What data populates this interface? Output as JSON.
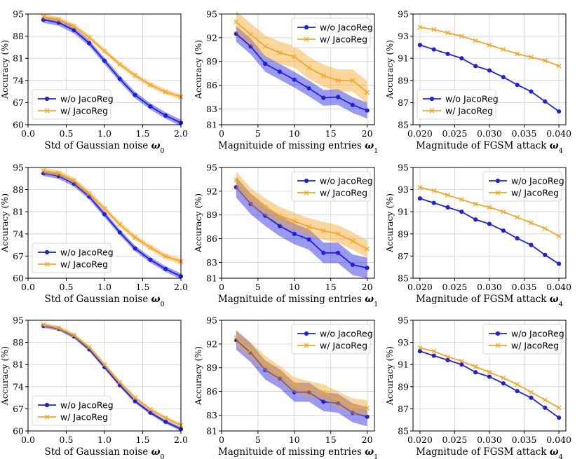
{
  "figure_colors": {
    "baseline": "#1f1fe0",
    "reg": "#f5a623",
    "grid": "#d0d0d0"
  },
  "chart_data": [
    {
      "type": "line",
      "row": 0,
      "col": 0,
      "xlabel": "Std of Gaussian noise",
      "xsym": "ω",
      "xsub": "0",
      "ylabel": "Accuracy (%)",
      "xlim": [
        0,
        2
      ],
      "ylim": [
        60,
        95
      ],
      "xticks": [
        0,
        0.5,
        1,
        1.5,
        2
      ],
      "xtick_labels": [
        "0.0",
        "0.5",
        "1.0",
        "1.5",
        "2.0"
      ],
      "yticks": [
        60,
        67,
        74,
        81,
        88,
        95
      ],
      "ytick_labels": [
        "60",
        "67",
        "74",
        "81",
        "88",
        "95"
      ],
      "legend_position": "lower-left",
      "x": [
        0.2,
        0.4,
        0.6,
        0.8,
        1.0,
        1.2,
        1.4,
        1.6,
        1.8,
        2.0
      ],
      "series": [
        {
          "name": "w/o JacoReg",
          "marker": "circle",
          "values": [
            93.2,
            92.3,
            89.9,
            85.8,
            80.2,
            74.5,
            69.4,
            65.8,
            62.9,
            60.6
          ],
          "band": 1.0
        },
        {
          "name": "w/ JacoReg",
          "marker": "x",
          "values": [
            94.2,
            93.3,
            91.2,
            87.6,
            83.3,
            79.1,
            75.6,
            72.6,
            70.4,
            68.8
          ],
          "band": 0.8
        }
      ]
    },
    {
      "type": "line",
      "row": 0,
      "col": 1,
      "xlabel": "Magnituide of missing entries",
      "xsym": "ω",
      "xsub": "1",
      "ylabel": "Accuracy (%)",
      "xlim": [
        0,
        21
      ],
      "ylim": [
        81,
        95
      ],
      "xticks": [
        0,
        5,
        10,
        15,
        20
      ],
      "xtick_labels": [
        "0",
        "5",
        "10",
        "15",
        "20"
      ],
      "yticks": [
        81,
        83,
        86,
        89,
        92,
        95
      ],
      "ytick_labels": [
        "81",
        "83",
        "86",
        "89",
        "92",
        "95"
      ],
      "legend_position": "top-right",
      "x": [
        2,
        4,
        6,
        8,
        10,
        12,
        14,
        16,
        18,
        20
      ],
      "series": [
        {
          "name": "w/o JacoReg",
          "marker": "circle",
          "values": [
            92.5,
            90.9,
            88.7,
            87.7,
            86.7,
            85.6,
            84.4,
            84.5,
            83.5,
            82.8
          ],
          "band": 1.0
        },
        {
          "name": "w/ JacoReg",
          "marker": "x",
          "values": [
            94.0,
            92.4,
            90.9,
            90.1,
            89.6,
            88.2,
            87.2,
            86.6,
            86.6,
            85.1
          ],
          "band": 1.4
        }
      ]
    },
    {
      "type": "line",
      "row": 0,
      "col": 2,
      "xlabel": "Magnitude of FGSM attack",
      "xsym": "ω",
      "xsub": "4",
      "ylabel": "Accuracy (%)",
      "xlim": [
        0.019,
        0.041
      ],
      "ylim": [
        85,
        95
      ],
      "xticks": [
        0.02,
        0.025,
        0.03,
        0.035,
        0.04
      ],
      "xtick_labels": [
        "0.020",
        "0.025",
        "0.030",
        "0.035",
        "0.040"
      ],
      "yticks": [
        85,
        87,
        89,
        91,
        93,
        95
      ],
      "ytick_labels": [
        "85",
        "87",
        "89",
        "91",
        "93",
        "95"
      ],
      "legend_position": "lower-left",
      "x": [
        0.02,
        0.022,
        0.024,
        0.026,
        0.028,
        0.03,
        0.032,
        0.034,
        0.036,
        0.038,
        0.04
      ],
      "series": [
        {
          "name": "w/o JacoReg",
          "marker": "circle",
          "values": [
            92.2,
            91.8,
            91.4,
            91.0,
            90.3,
            89.9,
            89.3,
            88.6,
            88.0,
            87.1,
            86.2
          ],
          "band": 0
        },
        {
          "name": "w/ JacoReg",
          "marker": "x",
          "values": [
            93.8,
            93.6,
            93.3,
            93.0,
            92.6,
            92.2,
            91.8,
            91.4,
            91.1,
            90.8,
            90.3
          ],
          "band": 0
        }
      ]
    },
    {
      "type": "line",
      "row": 1,
      "col": 0,
      "xlabel": "Std of Gaussian noise",
      "xsym": "ω",
      "xsub": "0",
      "ylabel": "Accuracy (%)",
      "xlim": [
        0,
        2
      ],
      "ylim": [
        60,
        95
      ],
      "xticks": [
        0,
        0.5,
        1,
        1.5,
        2
      ],
      "xtick_labels": [
        "0.0",
        "0.5",
        "1.0",
        "1.5",
        "2.0"
      ],
      "yticks": [
        60,
        67,
        74,
        81,
        88,
        95
      ],
      "ytick_labels": [
        "60",
        "67",
        "74",
        "81",
        "88",
        "95"
      ],
      "legend_position": "lower-left",
      "x": [
        0.2,
        0.4,
        0.6,
        0.8,
        1.0,
        1.2,
        1.4,
        1.6,
        1.8,
        2.0
      ],
      "series": [
        {
          "name": "w/o JacoReg",
          "marker": "circle",
          "values": [
            93.2,
            92.3,
            89.9,
            85.8,
            80.2,
            74.5,
            69.4,
            65.8,
            62.9,
            60.6
          ],
          "band": 0.9
        },
        {
          "name": "w/ JacoReg",
          "marker": "x",
          "values": [
            94.0,
            93.2,
            90.9,
            86.8,
            82.0,
            77.0,
            72.9,
            69.7,
            66.9,
            65.3
          ],
          "band": 0.9
        }
      ]
    },
    {
      "type": "line",
      "row": 1,
      "col": 1,
      "xlabel": "Magnituide of missing entries",
      "xsym": "ω",
      "xsub": "1",
      "ylabel": "Accuracy (%)",
      "xlim": [
        0,
        21
      ],
      "ylim": [
        81,
        95
      ],
      "xticks": [
        0,
        5,
        10,
        15,
        20
      ],
      "xtick_labels": [
        "0",
        "5",
        "10",
        "15",
        "20"
      ],
      "yticks": [
        81,
        83,
        86,
        89,
        92,
        95
      ],
      "ytick_labels": [
        "81",
        "83",
        "86",
        "89",
        "92",
        "95"
      ],
      "legend_position": "top-right",
      "x": [
        2,
        4,
        6,
        8,
        10,
        12,
        14,
        16,
        18,
        20
      ],
      "series": [
        {
          "name": "w/o JacoReg",
          "marker": "circle",
          "values": [
            92.5,
            90.4,
            88.9,
            87.6,
            86.6,
            85.9,
            84.2,
            84.2,
            82.7,
            82.3
          ],
          "band": 1.3
        },
        {
          "name": "w/ JacoReg",
          "marker": "x",
          "values": [
            93.4,
            91.3,
            90.0,
            88.9,
            88.2,
            87.5,
            87.0,
            86.6,
            85.7,
            84.7
          ],
          "band": 1.1
        }
      ]
    },
    {
      "type": "line",
      "row": 1,
      "col": 2,
      "xlabel": "Magnitude of FGSM attack",
      "xsym": "ω",
      "xsub": "4",
      "ylabel": "Accuracy (%)",
      "xlim": [
        0.019,
        0.041
      ],
      "ylim": [
        85,
        95
      ],
      "xticks": [
        0.02,
        0.025,
        0.03,
        0.035,
        0.04
      ],
      "xtick_labels": [
        "0.020",
        "0.025",
        "0.030",
        "0.035",
        "0.040"
      ],
      "yticks": [
        85,
        87,
        89,
        91,
        93,
        95
      ],
      "ytick_labels": [
        "85",
        "87",
        "89",
        "91",
        "93",
        "95"
      ],
      "legend_position": "top-right",
      "x": [
        0.02,
        0.022,
        0.024,
        0.026,
        0.028,
        0.03,
        0.032,
        0.034,
        0.036,
        0.038,
        0.04
      ],
      "series": [
        {
          "name": "w/o JacoReg",
          "marker": "circle",
          "values": [
            92.2,
            91.8,
            91.4,
            91.0,
            90.3,
            89.9,
            89.3,
            88.6,
            88.0,
            87.1,
            86.3
          ],
          "band": 0
        },
        {
          "name": "w/ JacoReg",
          "marker": "x",
          "values": [
            93.2,
            92.9,
            92.5,
            92.1,
            91.7,
            91.4,
            91.0,
            90.5,
            90.0,
            89.5,
            88.8
          ],
          "band": 0
        }
      ]
    },
    {
      "type": "line",
      "row": 2,
      "col": 0,
      "xlabel": "Std of Gaussian noise",
      "xsym": "ω",
      "xsub": "0",
      "ylabel": "Accuracy (%)",
      "xlim": [
        0,
        2
      ],
      "ylim": [
        60,
        95
      ],
      "xticks": [
        0,
        0.5,
        1,
        1.5,
        2
      ],
      "xtick_labels": [
        "0.0",
        "0.5",
        "1.0",
        "1.5",
        "2.0"
      ],
      "yticks": [
        60,
        67,
        74,
        81,
        88,
        95
      ],
      "ytick_labels": [
        "60",
        "67",
        "74",
        "81",
        "88",
        "95"
      ],
      "legend_position": "lower-left",
      "x": [
        0.2,
        0.4,
        0.6,
        0.8,
        1.0,
        1.2,
        1.4,
        1.6,
        1.8,
        2.0
      ],
      "series": [
        {
          "name": "w/o JacoReg",
          "marker": "circle",
          "values": [
            93.2,
            92.3,
            89.9,
            85.8,
            80.2,
            74.5,
            69.4,
            65.8,
            62.9,
            60.6
          ],
          "band": 0.6
        },
        {
          "name": "w/ JacoReg",
          "marker": "x",
          "values": [
            93.6,
            92.6,
            90.3,
            86.5,
            81.0,
            75.4,
            70.5,
            66.8,
            64.1,
            61.8
          ],
          "band": 0.6
        }
      ]
    },
    {
      "type": "line",
      "row": 2,
      "col": 1,
      "xlabel": "Magnituide of missing entries",
      "xsym": "ω",
      "xsub": "1",
      "ylabel": "Accuracy (%)",
      "xlim": [
        0,
        21
      ],
      "ylim": [
        81,
        95
      ],
      "xticks": [
        0,
        5,
        10,
        15,
        20
      ],
      "xtick_labels": [
        "0",
        "5",
        "10",
        "15",
        "20"
      ],
      "yticks": [
        81,
        83,
        86,
        89,
        92,
        95
      ],
      "ytick_labels": [
        "81",
        "83",
        "86",
        "89",
        "92",
        "95"
      ],
      "legend_position": "top-right",
      "x": [
        2,
        4,
        6,
        8,
        10,
        12,
        14,
        16,
        18,
        20
      ],
      "series": [
        {
          "name": "w/o JacoReg",
          "marker": "circle",
          "values": [
            92.5,
            90.9,
            88.7,
            87.6,
            85.9,
            85.9,
            84.7,
            84.5,
            83.3,
            82.8
          ],
          "band": 1.2
        },
        {
          "name": "w/ JacoReg",
          "marker": "x",
          "values": [
            92.8,
            91.2,
            89.5,
            88.2,
            86.8,
            86.3,
            85.9,
            85.0,
            84.1,
            83.9
          ],
          "band": 1.0
        }
      ]
    },
    {
      "type": "line",
      "row": 2,
      "col": 2,
      "xlabel": "Magnitude of FGSM attack",
      "xsym": "ω",
      "xsub": "4",
      "ylabel": "Accuracy (%)",
      "xlim": [
        0.019,
        0.041
      ],
      "ylim": [
        85,
        95
      ],
      "xticks": [
        0.02,
        0.025,
        0.03,
        0.035,
        0.04
      ],
      "xtick_labels": [
        "0.020",
        "0.025",
        "0.030",
        "0.035",
        "0.040"
      ],
      "yticks": [
        85,
        87,
        89,
        91,
        93,
        95
      ],
      "ytick_labels": [
        "85",
        "87",
        "89",
        "91",
        "93",
        "95"
      ],
      "legend_position": "top-right",
      "x": [
        0.02,
        0.022,
        0.024,
        0.026,
        0.028,
        0.03,
        0.032,
        0.034,
        0.036,
        0.038,
        0.04
      ],
      "series": [
        {
          "name": "w/o JacoReg",
          "marker": "circle",
          "values": [
            92.2,
            91.8,
            91.4,
            91.0,
            90.3,
            89.9,
            89.3,
            88.6,
            88.0,
            87.1,
            86.2
          ],
          "band": 0
        },
        {
          "name": "w/ JacoReg",
          "marker": "x",
          "values": [
            92.5,
            92.2,
            91.7,
            91.3,
            90.8,
            90.3,
            89.8,
            89.2,
            88.5,
            87.8,
            87.1
          ],
          "band": 0
        }
      ]
    }
  ]
}
